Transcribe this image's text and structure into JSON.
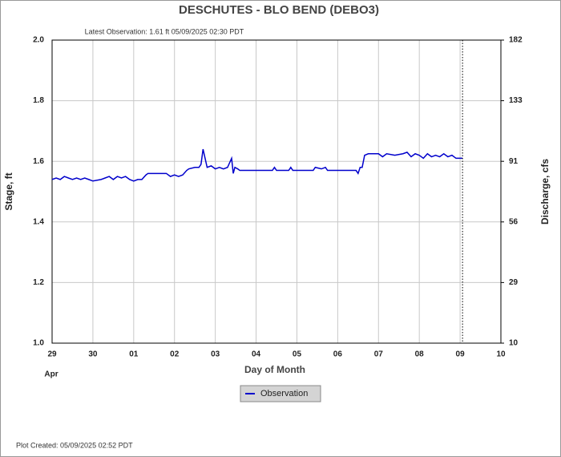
{
  "chart_data": {
    "type": "line",
    "title": "DESCHUTES - BLO BEND  (DEBO3)",
    "subtitle": "Latest Observation: 1.61 ft 05/09/2025 02:30 PDT",
    "xlabel": "Day of Month",
    "month_label": "Apr",
    "ylabel": "Stage, ft",
    "y2label": "Discharge, cfs",
    "footer": "Plot Created: 05/09/2025 02:52 PDT",
    "xlim": [
      0,
      11
    ],
    "xticks": [
      {
        "value": 0,
        "label": "29"
      },
      {
        "value": 1,
        "label": "30"
      },
      {
        "value": 2,
        "label": "01"
      },
      {
        "value": 3,
        "label": "02"
      },
      {
        "value": 4,
        "label": "03"
      },
      {
        "value": 5,
        "label": "04"
      },
      {
        "value": 6,
        "label": "05"
      },
      {
        "value": 7,
        "label": "06"
      },
      {
        "value": 8,
        "label": "07"
      },
      {
        "value": 9,
        "label": "08"
      },
      {
        "value": 10,
        "label": "09"
      },
      {
        "value": 11,
        "label": "10"
      }
    ],
    "ylim": [
      1.0,
      2.0
    ],
    "yticks": [
      {
        "value": 1.0,
        "label": "1.0"
      },
      1.2,
      1.4,
      1.6,
      1.8,
      {
        "value": 2.0,
        "label": "2.0"
      }
    ],
    "y2lim": [
      10,
      182
    ],
    "y2ticks": [
      10,
      29,
      56,
      91,
      133,
      182
    ],
    "grid": true,
    "legend": "bottom",
    "x": [
      0,
      0.1,
      0.2,
      0.3,
      0.4,
      0.5,
      0.6,
      0.7,
      0.8,
      0.9,
      1.0,
      1.2,
      1.3,
      1.4,
      1.5,
      1.6,
      1.7,
      1.8,
      1.9,
      2.0,
      2.1,
      2.2,
      2.3,
      2.35,
      2.5,
      2.8,
      2.9,
      3.0,
      3.1,
      3.2,
      3.3,
      3.35,
      3.5,
      3.6,
      3.65,
      3.7,
      3.75,
      3.8,
      3.9,
      4.0,
      4.1,
      4.2,
      4.3,
      4.4,
      4.44,
      4.48,
      4.55,
      4.6,
      5.0,
      5.4,
      5.45,
      5.5,
      5.6,
      5.8,
      5.85,
      5.9,
      6.2,
      6.4,
      6.45,
      6.6,
      6.7,
      6.75,
      6.9,
      7.0,
      7.45,
      7.5,
      7.55,
      7.6,
      7.66,
      7.75,
      8.0,
      8.1,
      8.2,
      8.4,
      8.6,
      8.7,
      8.8,
      8.9,
      9.0,
      9.1,
      9.2,
      9.3,
      9.4,
      9.5,
      9.6,
      9.7,
      9.8,
      9.9,
      10.06
    ],
    "series": [
      {
        "name": "Observation",
        "color": "#0000cc",
        "values": [
          1.54,
          1.545,
          1.54,
          1.55,
          1.545,
          1.54,
          1.545,
          1.54,
          1.545,
          1.54,
          1.535,
          1.54,
          1.545,
          1.55,
          1.54,
          1.55,
          1.545,
          1.55,
          1.54,
          1.535,
          1.54,
          1.54,
          1.555,
          1.56,
          1.56,
          1.56,
          1.55,
          1.555,
          1.55,
          1.555,
          1.57,
          1.575,
          1.58,
          1.58,
          1.59,
          1.64,
          1.61,
          1.58,
          1.585,
          1.575,
          1.58,
          1.575,
          1.58,
          1.61,
          1.56,
          1.58,
          1.575,
          1.57,
          1.57,
          1.57,
          1.58,
          1.57,
          1.57,
          1.57,
          1.58,
          1.57,
          1.57,
          1.57,
          1.58,
          1.575,
          1.58,
          1.57,
          1.57,
          1.57,
          1.57,
          1.56,
          1.58,
          1.58,
          1.62,
          1.625,
          1.625,
          1.615,
          1.625,
          1.62,
          1.625,
          1.63,
          1.615,
          1.625,
          1.62,
          1.61,
          1.625,
          1.615,
          1.62,
          1.615,
          1.625,
          1.615,
          1.62,
          1.61,
          1.61
        ]
      }
    ]
  }
}
